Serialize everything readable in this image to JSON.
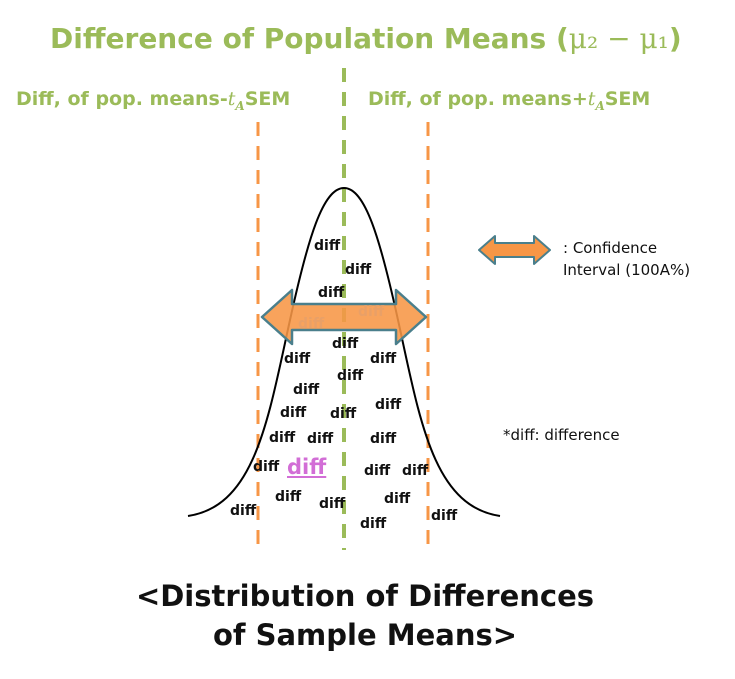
{
  "title": {
    "text": "Difference of Population Means (",
    "math": "μ₂ − μ₁",
    "close": ")"
  },
  "bounds": {
    "left": {
      "prefix": "Diff, of pop. means-",
      "var": "t",
      "sub": "A",
      "suffix": "SEM"
    },
    "right": {
      "prefix": "Diff, of pop. means+",
      "var": "t",
      "sub": "A",
      "suffix": "SEM"
    }
  },
  "diff_word": "diff",
  "highlight_diff": "diff",
  "legend": {
    "line1": ": Confidence",
    "line2": "Interval (100A%)",
    "footnote": "*diff: difference"
  },
  "caption": {
    "line1": "<Distribution of Differences",
    "line2": "of Sample Means>"
  },
  "colors": {
    "green": "#9bbb59",
    "orange": "#f79646",
    "arrow_border": "#4a7f8c",
    "highlight": "#d26ed6"
  }
}
